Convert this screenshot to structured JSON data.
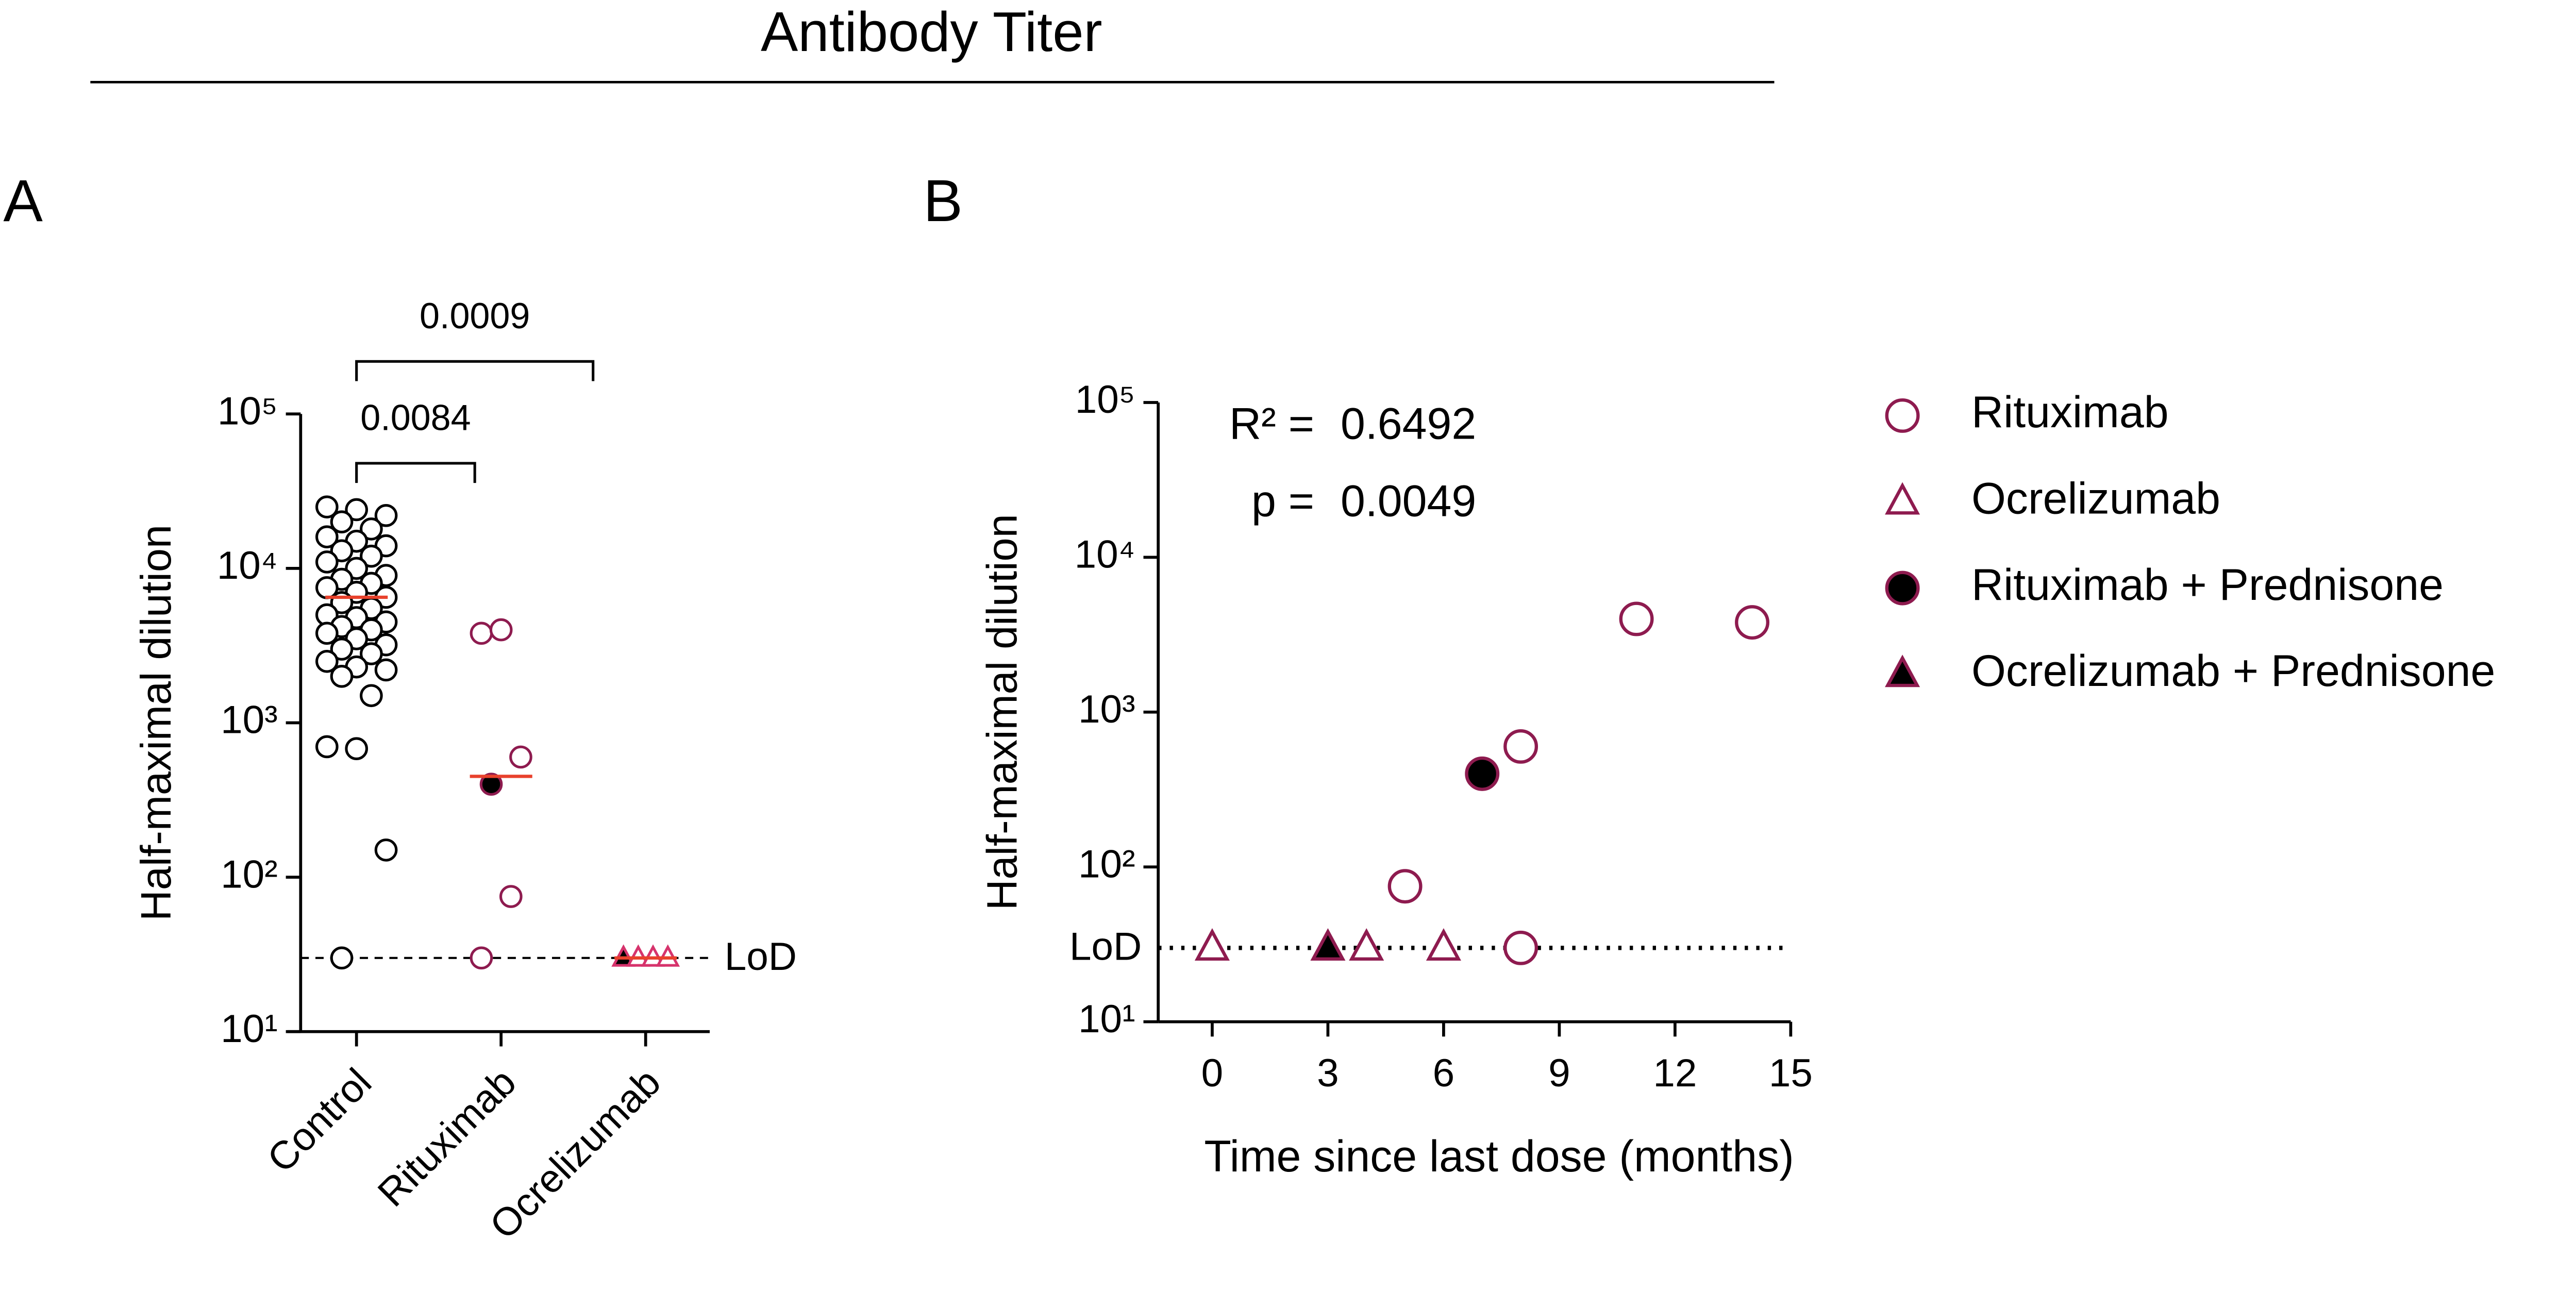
{
  "title": "Antibody Titer",
  "chart_data": [
    {
      "type": "dot",
      "panel": "A",
      "categories": [
        "Control",
        "Rituximab",
        "Ocrelizumab"
      ],
      "values": [
        [
          25000,
          24000,
          22000,
          20000,
          18000,
          16000,
          15000,
          14000,
          13000,
          12000,
          11000,
          10000,
          9000,
          8500,
          8000,
          7500,
          7000,
          6500,
          6000,
          5500,
          5000,
          4800,
          4500,
          4200,
          4000,
          3800,
          3500,
          3200,
          3000,
          2800,
          2500,
          2300,
          2200,
          2000,
          1500,
          700,
          680,
          150,
          30
        ],
        [
          3800,
          4000,
          600,
          400,
          75,
          30
        ],
        [
          30,
          30,
          30,
          30
        ]
      ],
      "markers": [
        "circle",
        "circle",
        "triangle"
      ],
      "colors": [
        "#000000",
        "#8e1b4f",
        "#d6336c"
      ],
      "fills": [
        "#ffffff",
        [
          "#ffffff",
          "#ffffff",
          "#ffffff",
          "#000000",
          "#ffffff",
          "#ffffff"
        ],
        [
          "#000000",
          "#ffffff",
          "#ffffff",
          "#ffffff"
        ]
      ],
      "medians": [
        6500,
        450,
        30
      ],
      "median_color": "#e8412c",
      "y_label": "Half-maximal dilution",
      "log_y": true,
      "ylim": [
        10,
        100000
      ],
      "yticks": [
        {
          "value": 10,
          "label": "10¹"
        },
        {
          "value": 100,
          "label": "10²"
        },
        {
          "value": 1000,
          "label": "10³"
        },
        {
          "value": 10000,
          "label": "10⁴"
        },
        {
          "value": 100000,
          "label": "10⁵"
        }
      ],
      "lod": {
        "value": 30,
        "label": "LoD"
      },
      "annotations": [
        {
          "text": 0.0084,
          "from": 0,
          "to": 1
        },
        {
          "text": 0.0009,
          "from": 0,
          "to": 2
        }
      ]
    },
    {
      "type": "scatter",
      "panel": "B",
      "x_label": "Time since last dose (months)",
      "y_label": "Half-maximal dilution",
      "log_y": true,
      "xlim": [
        -1.4,
        15
      ],
      "xticks": [
        0,
        3,
        6,
        9,
        12,
        15
      ],
      "ylim": [
        10,
        100000
      ],
      "yticks": [
        {
          "value": 10,
          "label": "10¹"
        },
        {
          "value": 100,
          "label": "10²"
        },
        {
          "value": 1000,
          "label": "10³"
        },
        {
          "value": 10000,
          "label": "10⁴"
        },
        {
          "value": 100000,
          "label": "10⁵"
        }
      ],
      "lod": {
        "value": 30,
        "label": "LoD"
      },
      "series": [
        {
          "name": "Rituximab",
          "marker": "circle",
          "color": "#8e1b4f",
          "fill": "#ffffff",
          "x": [
            5,
            8,
            8,
            11,
            14
          ],
          "values": [
            75,
            600,
            30,
            4000,
            3800
          ]
        },
        {
          "name": "Ocrelizumab",
          "marker": "triangle",
          "color": "#8e1b4f",
          "fill": "#ffffff",
          "x": [
            0,
            4,
            6
          ],
          "values": [
            30,
            30,
            30
          ]
        },
        {
          "name": "Rituximab + Prednisone",
          "marker": "circle",
          "color": "#8e1b4f",
          "fill": "#000000",
          "x": [
            7
          ],
          "values": [
            400
          ]
        },
        {
          "name": "Ocrelizumab + Prednisone",
          "marker": "triangle",
          "color": "#8e1b4f",
          "fill": "#000000",
          "x": [
            3
          ],
          "values": [
            30
          ]
        }
      ],
      "stats": [
        {
          "label": "R² =",
          "value": 0.6492
        },
        {
          "label": "p =",
          "value": 0.0049
        }
      ]
    }
  ]
}
